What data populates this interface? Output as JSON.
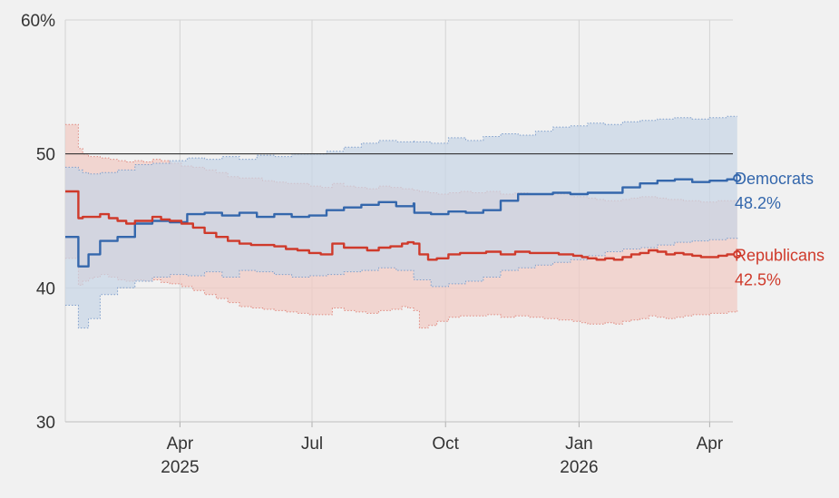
{
  "chart_data": {
    "type": "line",
    "title": "",
    "xlabel": "",
    "ylabel": "",
    "ylim": [
      30,
      60
    ],
    "xlim": [
      0,
      460
    ],
    "y_ticks": [
      {
        "value": 60,
        "label": "60%"
      },
      {
        "value": 50,
        "label": "50"
      },
      {
        "value": 40,
        "label": "40"
      },
      {
        "value": 30,
        "label": "30"
      }
    ],
    "x_ticks": [
      {
        "day": 79,
        "label": "Apr",
        "sublabel": "2025"
      },
      {
        "day": 170,
        "label": "Jul",
        "sublabel": ""
      },
      {
        "day": 262,
        "label": "Oct",
        "sublabel": ""
      },
      {
        "day": 354,
        "label": "Jan",
        "sublabel": "2026"
      },
      {
        "day": 444,
        "label": "Apr",
        "sublabel": ""
      }
    ],
    "reference_line": 50,
    "series": [
      {
        "name": "Democrats",
        "end_label": "48.2%",
        "color": "#3467ac",
        "band_color": "#c8d6e6",
        "band_edge_color": "#7f9fcc",
        "x": [
          0,
          8,
          9,
          12,
          16,
          24,
          36,
          48,
          60,
          72,
          84,
          96,
          108,
          120,
          132,
          144,
          156,
          168,
          180,
          192,
          204,
          216,
          228,
          240,
          240.5,
          252,
          264,
          276,
          288,
          300,
          312,
          324,
          336,
          348,
          360,
          372,
          384,
          396,
          408,
          420,
          432,
          444,
          456,
          463
        ],
        "values": [
          43.8,
          43.8,
          41.6,
          41.6,
          42.5,
          43.5,
          43.8,
          44.8,
          45.0,
          44.9,
          45.5,
          45.6,
          45.4,
          45.6,
          45.3,
          45.5,
          45.3,
          45.4,
          45.8,
          46.0,
          46.2,
          46.4,
          46.1,
          46.3,
          45.6,
          45.5,
          45.7,
          45.6,
          45.8,
          46.5,
          47.0,
          47.0,
          47.1,
          47.0,
          47.1,
          47.1,
          47.5,
          47.8,
          48.0,
          48.1,
          47.9,
          48.0,
          48.1,
          48.2
        ],
        "upper": [
          49.0,
          49.0,
          48.8,
          48.6,
          48.5,
          48.6,
          48.8,
          49.2,
          49.3,
          49.5,
          49.7,
          49.6,
          49.8,
          49.6,
          49.9,
          49.8,
          50.0,
          50.0,
          50.2,
          50.5,
          50.8,
          51.0,
          50.9,
          51.0,
          50.9,
          50.8,
          51.2,
          51.0,
          51.3,
          51.5,
          51.4,
          51.7,
          52.0,
          52.1,
          52.3,
          52.2,
          52.4,
          52.5,
          52.6,
          52.7,
          52.6,
          52.7,
          52.8,
          52.8
        ],
        "lower": [
          38.7,
          38.7,
          37.0,
          37.0,
          37.7,
          39.5,
          40.0,
          40.5,
          40.8,
          41.0,
          40.9,
          41.2,
          40.8,
          41.3,
          41.2,
          41.0,
          40.8,
          40.9,
          41.0,
          41.2,
          41.3,
          41.5,
          41.3,
          40.8,
          40.6,
          40.1,
          40.3,
          40.5,
          40.8,
          41.3,
          41.5,
          41.7,
          41.9,
          42.1,
          42.4,
          42.7,
          42.9,
          43.0,
          43.2,
          43.4,
          43.5,
          43.6,
          43.7,
          43.8
        ]
      },
      {
        "name": "Republicans",
        "end_label": "42.5%",
        "color": "#cf3a2b",
        "band_color": "#f1cbc3",
        "band_edge_color": "#e08a80",
        "x": [
          0,
          8,
          9,
          12,
          16,
          20,
          24,
          30,
          36,
          42,
          48,
          54,
          60,
          66,
          72,
          80,
          88,
          96,
          104,
          112,
          120,
          128,
          136,
          144,
          152,
          160,
          168,
          176,
          184,
          192,
          200,
          208,
          216,
          224,
          232,
          236,
          240,
          244,
          250,
          256,
          264,
          272,
          280,
          290,
          300,
          310,
          320,
          330,
          340,
          350,
          356,
          360,
          366,
          372,
          378,
          384,
          390,
          396,
          402,
          408,
          414,
          420,
          426,
          432,
          438,
          444,
          450,
          456,
          463
        ],
        "values": [
          47.2,
          47.2,
          45.2,
          45.3,
          45.3,
          45.3,
          45.5,
          45.2,
          45.0,
          44.8,
          45.0,
          45.0,
          45.3,
          45.1,
          45.0,
          44.8,
          44.5,
          44.1,
          43.8,
          43.5,
          43.3,
          43.2,
          43.2,
          43.1,
          42.9,
          42.8,
          42.6,
          42.5,
          43.3,
          43.0,
          43.0,
          42.8,
          43.0,
          43.1,
          43.3,
          43.4,
          43.3,
          42.5,
          42.1,
          42.2,
          42.5,
          42.6,
          42.6,
          42.7,
          42.5,
          42.7,
          42.6,
          42.6,
          42.5,
          42.4,
          42.3,
          42.2,
          42.1,
          42.2,
          42.1,
          42.3,
          42.5,
          42.6,
          42.8,
          42.7,
          42.5,
          42.6,
          42.5,
          42.4,
          42.3,
          42.3,
          42.4,
          42.5,
          42.5
        ],
        "upper": [
          52.2,
          52.2,
          50.4,
          50.0,
          49.8,
          49.8,
          49.7,
          49.6,
          49.5,
          49.4,
          49.5,
          49.4,
          49.6,
          49.5,
          49.3,
          49.1,
          49.0,
          48.8,
          48.6,
          48.3,
          48.2,
          48.2,
          48.0,
          47.9,
          47.8,
          47.8,
          47.6,
          47.5,
          47.8,
          47.6,
          47.5,
          47.4,
          47.6,
          47.5,
          47.4,
          47.4,
          47.3,
          47.2,
          47.1,
          47.0,
          47.1,
          47.2,
          47.1,
          47.2,
          47.0,
          47.1,
          47.0,
          47.0,
          47.0,
          46.8,
          46.8,
          46.7,
          46.6,
          46.5,
          46.5,
          46.6,
          46.7,
          46.8,
          46.8,
          46.7,
          46.6,
          46.6,
          46.5,
          46.5,
          46.4,
          46.4,
          46.5,
          46.5,
          46.6
        ],
        "lower": [
          42.2,
          42.2,
          40.2,
          40.5,
          40.7,
          40.8,
          41.0,
          40.8,
          40.6,
          40.5,
          40.6,
          40.5,
          40.6,
          40.4,
          40.3,
          40.1,
          39.8,
          39.5,
          39.2,
          38.9,
          38.6,
          38.5,
          38.4,
          38.3,
          38.2,
          38.1,
          38.0,
          38.0,
          38.5,
          38.3,
          38.2,
          38.1,
          38.3,
          38.4,
          38.6,
          38.5,
          38.3,
          37.0,
          37.2,
          37.5,
          37.8,
          37.9,
          37.9,
          38.0,
          37.8,
          37.9,
          37.8,
          37.7,
          37.6,
          37.5,
          37.4,
          37.3,
          37.3,
          37.4,
          37.3,
          37.5,
          37.6,
          37.7,
          37.9,
          37.8,
          37.7,
          37.8,
          37.9,
          38.0,
          38.0,
          38.1,
          38.1,
          38.2,
          38.3
        ]
      }
    ]
  }
}
